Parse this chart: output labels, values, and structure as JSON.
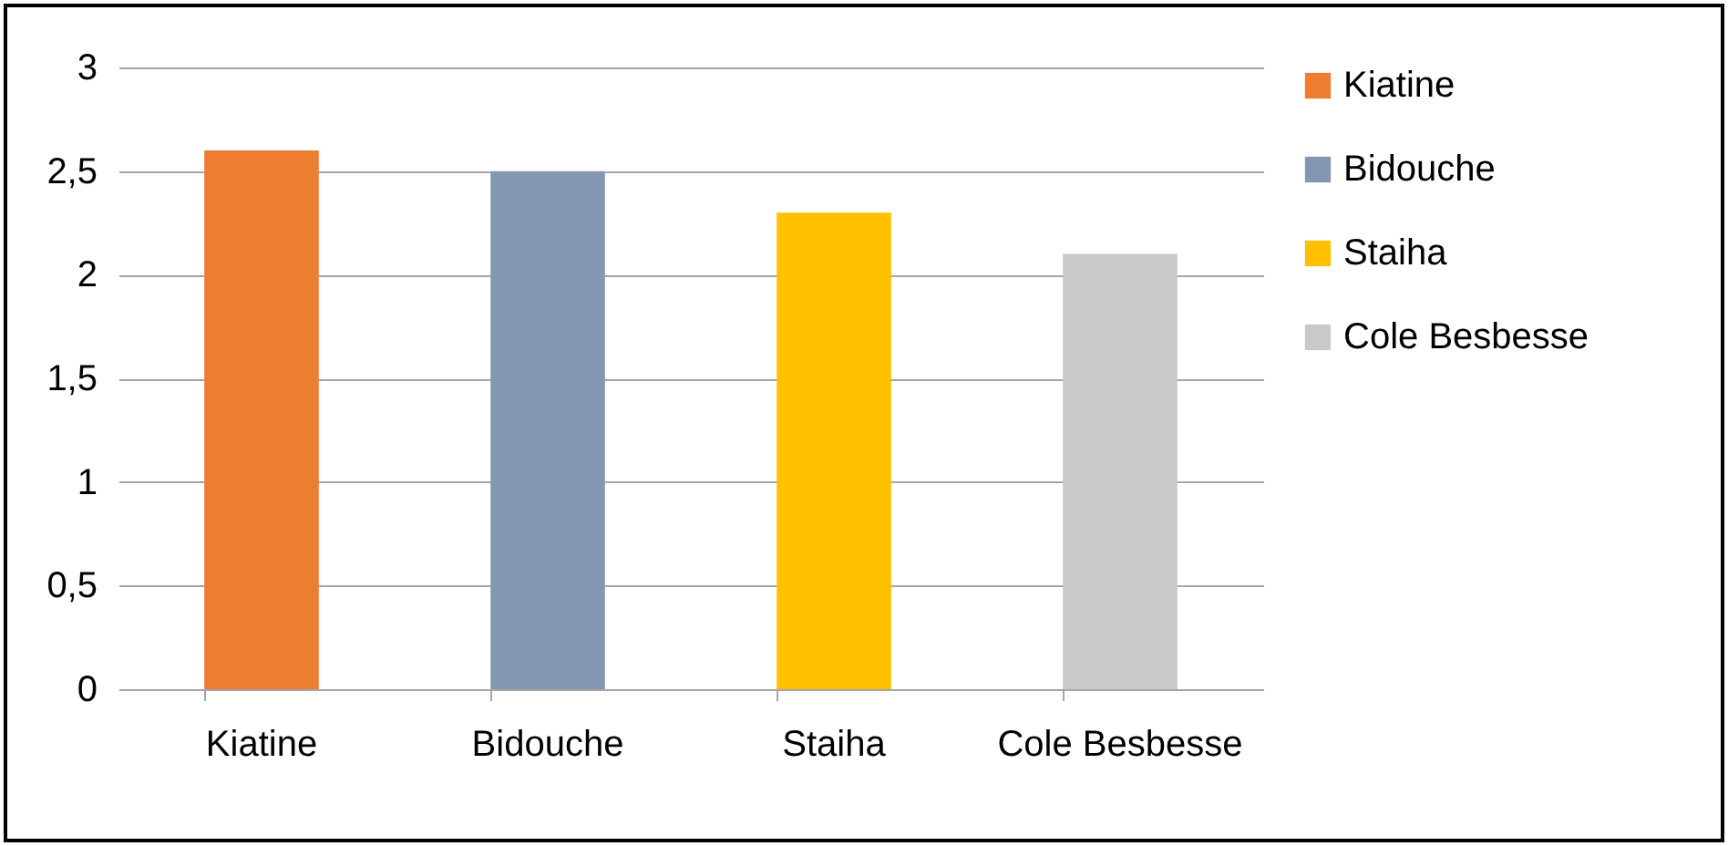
{
  "chart_data": {
    "type": "bar",
    "categories": [
      "Kiatine",
      "Bidouche",
      "Staiha",
      "Cole Besbesse"
    ],
    "series": [
      {
        "name": "Kiatine",
        "color": "#ed7d31",
        "values": [
          2.6,
          null,
          null,
          null
        ]
      },
      {
        "name": "Bidouche",
        "color": "#8497b0",
        "values": [
          null,
          2.5,
          null,
          null
        ]
      },
      {
        "name": "Staiha",
        "color": "#ffc000",
        "values": [
          null,
          null,
          2.3,
          null
        ]
      },
      {
        "name": "Cole Besbesse",
        "color": "#c9c9c9",
        "values": [
          null,
          null,
          null,
          2.1
        ]
      }
    ],
    "ylim": [
      0,
      3
    ],
    "yticks": [
      0,
      {
        "value": 0.5,
        "label": "0,5"
      },
      1,
      {
        "value": 1.5,
        "label": "1,5"
      },
      2,
      {
        "value": 2.5,
        "label": "2,5"
      },
      3
    ],
    "grid": "y",
    "legend": "right"
  }
}
